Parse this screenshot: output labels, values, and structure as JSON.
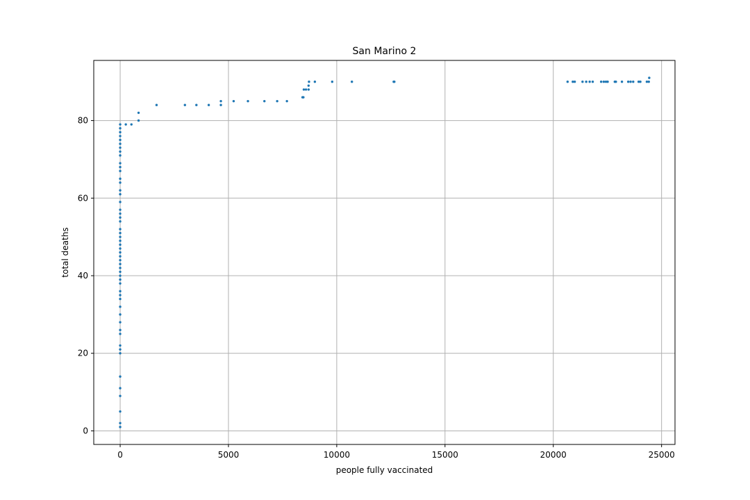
{
  "chart_data": {
    "type": "scatter",
    "title": "San Marino 2",
    "xlabel": "people fully vaccinated",
    "ylabel": "total deaths",
    "xlim": [
      -1220,
      25620
    ],
    "ylim": [
      -3.5,
      95.5
    ],
    "xticks": [
      0,
      5000,
      10000,
      15000,
      20000,
      25000
    ],
    "yticks": [
      0,
      20,
      40,
      60,
      80
    ],
    "grid": true,
    "colors": {
      "points": "#1f77b4",
      "grid": "#b0b0b0",
      "axes": "#000000"
    },
    "series": [
      {
        "points": [
          [
            0,
            1
          ],
          [
            0,
            2
          ],
          [
            0,
            5
          ],
          [
            0,
            9
          ],
          [
            0,
            11
          ],
          [
            0,
            14
          ],
          [
            0,
            20
          ],
          [
            0,
            21
          ],
          [
            0,
            22
          ],
          [
            0,
            25
          ],
          [
            0,
            26
          ],
          [
            0,
            28
          ],
          [
            0,
            30
          ],
          [
            0,
            32
          ],
          [
            0,
            34
          ],
          [
            0,
            35
          ],
          [
            0,
            36
          ],
          [
            0,
            38
          ],
          [
            0,
            39
          ],
          [
            0,
            40
          ],
          [
            0,
            41
          ],
          [
            0,
            42
          ],
          [
            0,
            43
          ],
          [
            0,
            44
          ],
          [
            0,
            45
          ],
          [
            0,
            46
          ],
          [
            0,
            47
          ],
          [
            0,
            48
          ],
          [
            0,
            49
          ],
          [
            0,
            50
          ],
          [
            0,
            51
          ],
          [
            0,
            52
          ],
          [
            0,
            54
          ],
          [
            0,
            55
          ],
          [
            0,
            56
          ],
          [
            0,
            57
          ],
          [
            0,
            59
          ],
          [
            0,
            61
          ],
          [
            0,
            62
          ],
          [
            0,
            64
          ],
          [
            0,
            65
          ],
          [
            0,
            67
          ],
          [
            0,
            68
          ],
          [
            0,
            69
          ],
          [
            0,
            71
          ],
          [
            0,
            72
          ],
          [
            0,
            73
          ],
          [
            0,
            74
          ],
          [
            0,
            75
          ],
          [
            0,
            76
          ],
          [
            0,
            77
          ],
          [
            0,
            78
          ],
          [
            0,
            79
          ],
          [
            260,
            79
          ],
          [
            520,
            79
          ],
          [
            850,
            80
          ],
          [
            850,
            82
          ],
          [
            1680,
            84
          ],
          [
            2990,
            84
          ],
          [
            3520,
            84
          ],
          [
            4090,
            84
          ],
          [
            4650,
            84
          ],
          [
            4650,
            85
          ],
          [
            5240,
            85
          ],
          [
            5900,
            85
          ],
          [
            6660,
            85
          ],
          [
            7250,
            85
          ],
          [
            7700,
            85
          ],
          [
            8420,
            86
          ],
          [
            8460,
            86
          ],
          [
            8480,
            88
          ],
          [
            8580,
            88
          ],
          [
            8700,
            88
          ],
          [
            8700,
            89
          ],
          [
            8720,
            90
          ],
          [
            8990,
            90
          ],
          [
            9790,
            90
          ],
          [
            10700,
            90
          ],
          [
            12630,
            90
          ],
          [
            12660,
            90
          ],
          [
            20660,
            90
          ],
          [
            20900,
            90
          ],
          [
            20990,
            90
          ],
          [
            21350,
            90
          ],
          [
            21520,
            90
          ],
          [
            21680,
            90
          ],
          [
            21820,
            90
          ],
          [
            22210,
            90
          ],
          [
            22330,
            90
          ],
          [
            22430,
            90
          ],
          [
            22510,
            90
          ],
          [
            22840,
            90
          ],
          [
            22890,
            90
          ],
          [
            23170,
            90
          ],
          [
            23460,
            90
          ],
          [
            23570,
            90
          ],
          [
            23690,
            90
          ],
          [
            23940,
            90
          ],
          [
            24020,
            90
          ],
          [
            24320,
            90
          ],
          [
            24410,
            90
          ],
          [
            24430,
            91
          ]
        ]
      }
    ]
  }
}
